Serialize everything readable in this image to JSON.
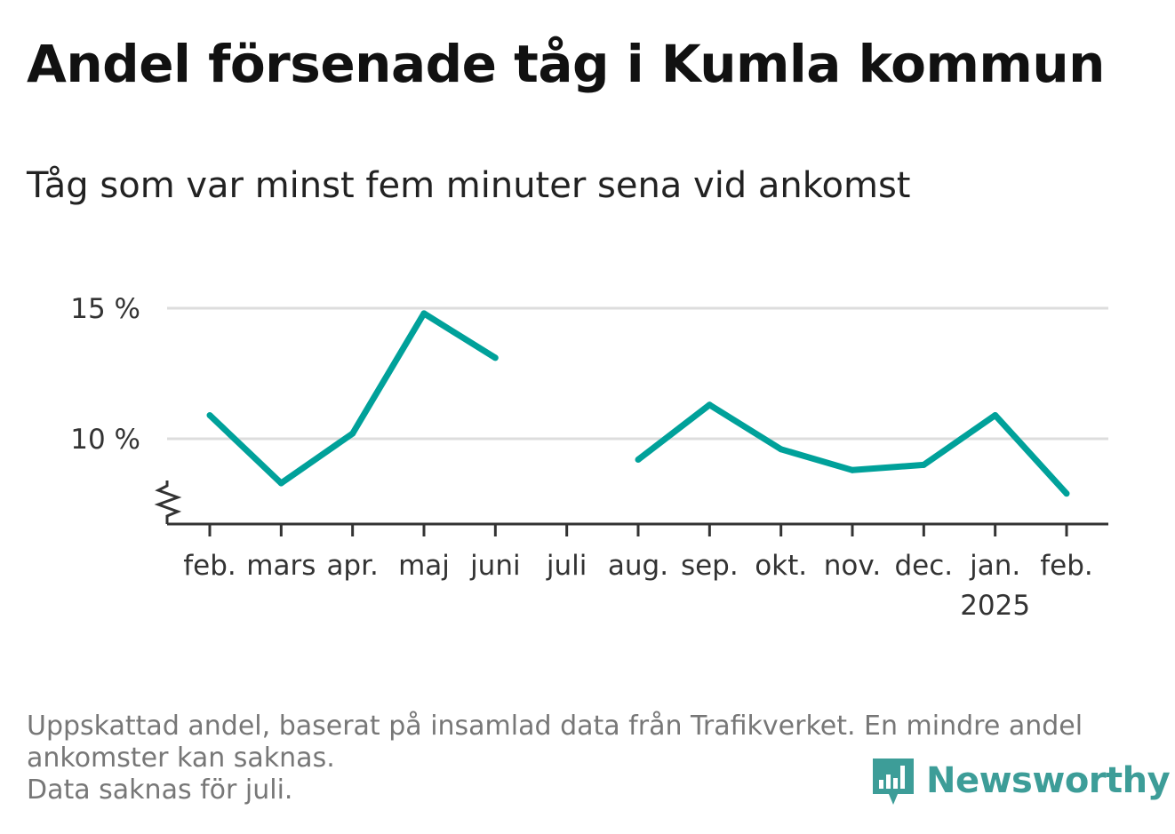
{
  "title": "Andel försenade tåg i Kumla kommun",
  "subtitle": "Tåg som var minst fem minuter sena vid ankomst",
  "footnote": {
    "line1": "Uppskattad andel, baserat på insamlad data från Trafikverket. En mindre andel",
    "line2": "ankomster kan saknas.",
    "line3": "Data saknas för juli."
  },
  "brand": {
    "name": "Newsworthy",
    "color": "#3d9d98",
    "icon": "bar-chart-speech-icon"
  },
  "colors": {
    "line": "#00a19a",
    "grid": "#dddddd",
    "axis": "#333333"
  },
  "chart_data": {
    "type": "line",
    "categories": [
      "feb.",
      "mars",
      "apr.",
      "maj",
      "juni",
      "juli",
      "aug.",
      "sep.",
      "okt.",
      "nov.",
      "dec.",
      "jan.",
      "feb."
    ],
    "year_label": {
      "under": "jan.",
      "text": "2025"
    },
    "series": [
      {
        "values": [
          10.9,
          8.3,
          10.2,
          14.8,
          13.1,
          null,
          9.2,
          11.3,
          9.6,
          8.8,
          9.0,
          10.9,
          7.9
        ]
      }
    ],
    "y_ticks": [
      {
        "value": 10,
        "label": "10 %"
      },
      {
        "value": 15,
        "label": "15 %"
      }
    ],
    "ylim": [
      7.3,
      15.5
    ],
    "axis_break": true,
    "grid": true
  }
}
